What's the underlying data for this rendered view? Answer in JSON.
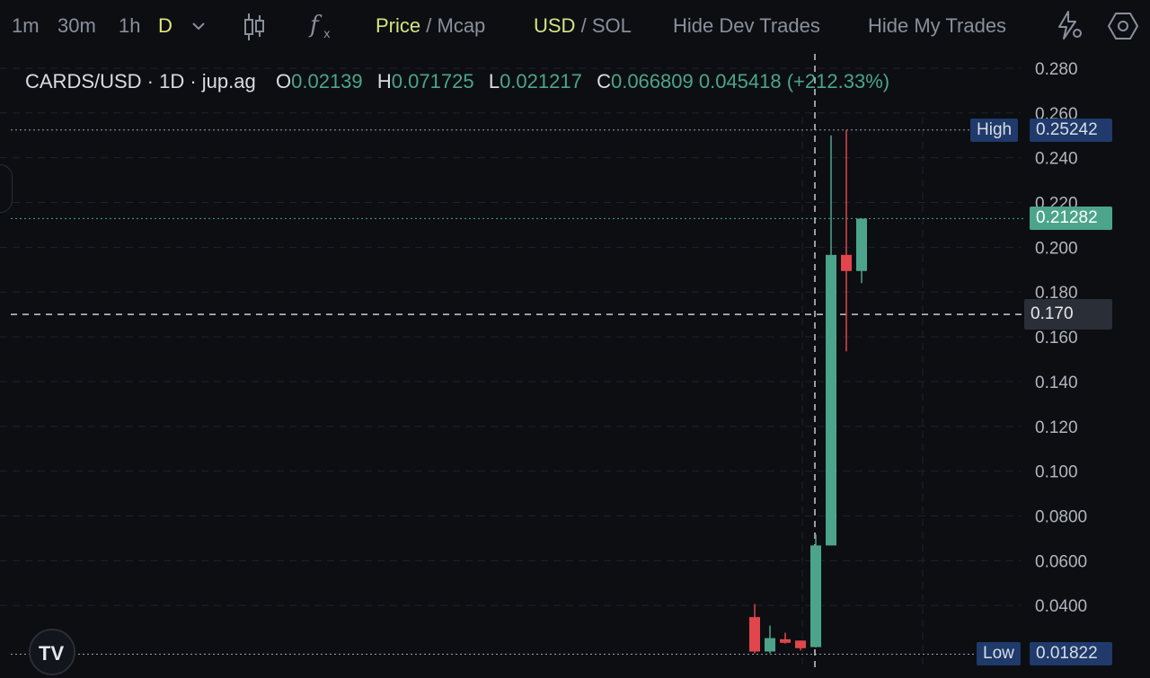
{
  "toolbar": {
    "tf_1m": "1m",
    "tf_30m": "30m",
    "tf_1h": "1h",
    "tf_d": "D",
    "price": "Price",
    "sep": "/",
    "mcap": "Mcap",
    "usd": "USD",
    "sol": "SOL",
    "hide_dev": "Hide Dev Trades",
    "hide_my": "Hide My Trades"
  },
  "header": {
    "symbol": "CARDS/USD · 1D · jup.ag",
    "o_label": "O",
    "o_value": "0.02139",
    "h_label": "H",
    "h_value": "0.071725",
    "l_label": "L",
    "l_value": "0.021217",
    "c_label": "C",
    "c_value": "0.066809",
    "change": "0.045418 (+212.33%)"
  },
  "tags": {
    "high_label": "High",
    "high_value": "0.25242",
    "last_value": "0.21282",
    "cross_value": "0.170",
    "low_label": "Low",
    "low_value": "0.01822"
  },
  "colors": {
    "up": "#4ca58a",
    "down": "#e0464b",
    "bg": "#0c0e12",
    "tag_blue": "#1f3a6b"
  },
  "chart_data": {
    "type": "candlestick",
    "title": "CARDS/USD · 1D · jup.ag",
    "ylim": [
      0.0156,
      0.2864
    ],
    "y_ticks": [
      "0.280",
      "0.260",
      "0.240",
      "0.220",
      "0.200",
      "0.180",
      "0.160",
      "0.140",
      "0.120",
      "0.100",
      "0.0800",
      "0.0600",
      "0.0400"
    ],
    "y_tick_values": [
      0.28,
      0.26,
      0.24,
      0.22,
      0.2,
      0.18,
      0.16,
      0.14,
      0.12,
      0.1,
      0.08,
      0.06,
      0.04
    ],
    "high_line": 0.25242,
    "low_line": 0.01822,
    "last_price": 0.21282,
    "crosshair_price": 0.17,
    "candles": [
      {
        "open": 0.0348,
        "high": 0.0406,
        "low": 0.0186,
        "close": 0.0194
      },
      {
        "open": 0.0194,
        "high": 0.031,
        "low": 0.0186,
        "close": 0.0254
      },
      {
        "open": 0.0249,
        "high": 0.0278,
        "low": 0.023,
        "close": 0.0233
      },
      {
        "open": 0.0243,
        "high": 0.0243,
        "low": 0.0199,
        "close": 0.0209
      },
      {
        "open": 0.02139,
        "high": 0.071725,
        "low": 0.021217,
        "close": 0.066809
      },
      {
        "open": 0.0668,
        "high": 0.25,
        "low": 0.0668,
        "close": 0.1966
      },
      {
        "open": 0.1966,
        "high": 0.25242,
        "low": 0.1535,
        "close": 0.1894
      },
      {
        "open": 0.1894,
        "high": 0.2128,
        "low": 0.184,
        "close": 0.21282
      }
    ]
  }
}
